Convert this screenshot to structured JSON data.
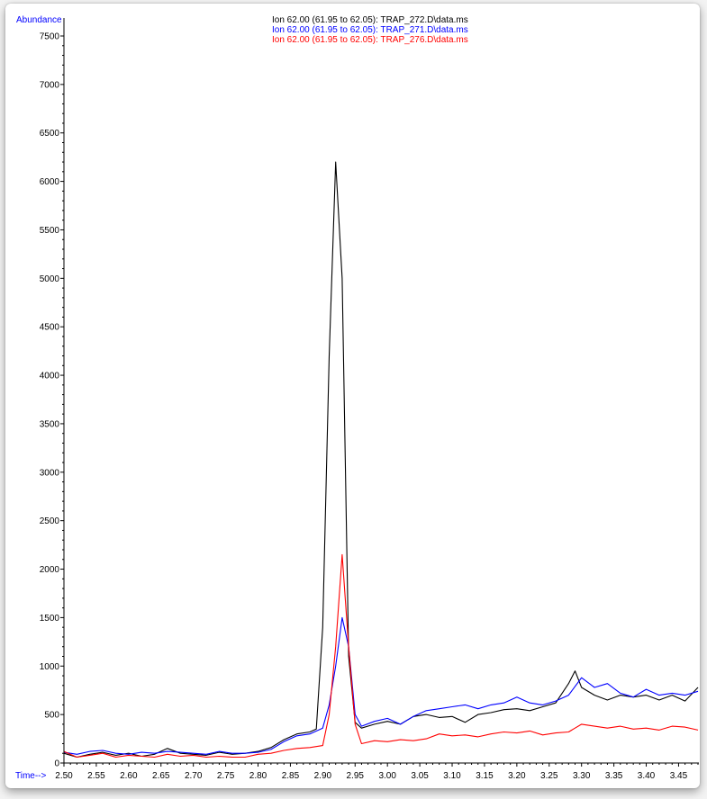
{
  "chart_data": {
    "type": "line",
    "ylabel": "Abundance",
    "xlabel": "Time-->",
    "xlim": [
      2.5,
      3.48
    ],
    "ylim": [
      0,
      7600
    ],
    "x_ticks": [
      "2.50",
      "2.55",
      "2.60",
      "2.65",
      "2.70",
      "2.75",
      "2.80",
      "2.85",
      "2.90",
      "2.95",
      "3.00",
      "3.05",
      "3.10",
      "3.15",
      "3.20",
      "3.25",
      "3.30",
      "3.35",
      "3.40",
      "3.45"
    ],
    "y_ticks": [
      "0",
      "500",
      "1000",
      "1500",
      "2000",
      "2500",
      "3000",
      "3500",
      "4000",
      "4500",
      "5000",
      "5500",
      "6000",
      "6500",
      "7000",
      "7500"
    ],
    "grid": false,
    "legend_position": "top-center",
    "series": [
      {
        "name": "Ion  62.00 (61.95 to 62.05): TRAP_272.D\\data.ms",
        "color": "#000000",
        "x": [
          2.5,
          2.52,
          2.54,
          2.56,
          2.58,
          2.6,
          2.62,
          2.64,
          2.66,
          2.68,
          2.7,
          2.72,
          2.74,
          2.76,
          2.78,
          2.8,
          2.82,
          2.84,
          2.86,
          2.88,
          2.89,
          2.9,
          2.91,
          2.92,
          2.93,
          2.94,
          2.95,
          2.96,
          2.98,
          3.0,
          3.02,
          3.04,
          3.06,
          3.08,
          3.1,
          3.12,
          3.14,
          3.16,
          3.18,
          3.2,
          3.22,
          3.24,
          3.26,
          3.28,
          3.29,
          3.3,
          3.32,
          3.34,
          3.36,
          3.38,
          3.4,
          3.42,
          3.44,
          3.46,
          3.48
        ],
        "y": [
          100,
          60,
          90,
          110,
          80,
          100,
          70,
          90,
          150,
          100,
          90,
          80,
          110,
          90,
          100,
          120,
          160,
          240,
          300,
          320,
          350,
          1400,
          4200,
          6200,
          5000,
          1100,
          420,
          360,
          400,
          430,
          400,
          480,
          500,
          470,
          480,
          420,
          500,
          520,
          550,
          560,
          540,
          580,
          620,
          820,
          950,
          780,
          700,
          650,
          700,
          680,
          700,
          650,
          700,
          640,
          780
        ]
      },
      {
        "name": "Ion  62.00 (61.95 to 62.05): TRAP_271.D\\data.ms",
        "color": "#0000ff",
        "x": [
          2.5,
          2.52,
          2.54,
          2.56,
          2.58,
          2.6,
          2.62,
          2.64,
          2.66,
          2.68,
          2.7,
          2.72,
          2.74,
          2.76,
          2.78,
          2.8,
          2.82,
          2.84,
          2.86,
          2.88,
          2.9,
          2.91,
          2.92,
          2.93,
          2.94,
          2.95,
          2.96,
          2.98,
          3.0,
          3.02,
          3.04,
          3.06,
          3.08,
          3.1,
          3.12,
          3.14,
          3.16,
          3.18,
          3.2,
          3.22,
          3.24,
          3.26,
          3.28,
          3.3,
          3.32,
          3.34,
          3.36,
          3.38,
          3.4,
          3.42,
          3.44,
          3.46,
          3.48
        ],
        "y": [
          110,
          90,
          120,
          130,
          100,
          90,
          110,
          100,
          120,
          110,
          100,
          90,
          120,
          100,
          100,
          110,
          140,
          220,
          280,
          300,
          360,
          600,
          1000,
          1500,
          1200,
          500,
          380,
          430,
          460,
          400,
          480,
          540,
          560,
          580,
          600,
          560,
          600,
          620,
          680,
          620,
          600,
          640,
          700,
          880,
          780,
          820,
          720,
          680,
          760,
          700,
          720,
          700,
          740
        ]
      },
      {
        "name": "Ion  62.00 (61.95 to 62.05): TRAP_276.D\\data.ms",
        "color": "#ff0000",
        "x": [
          2.5,
          2.52,
          2.54,
          2.56,
          2.58,
          2.6,
          2.62,
          2.64,
          2.66,
          2.68,
          2.7,
          2.72,
          2.74,
          2.76,
          2.78,
          2.8,
          2.82,
          2.84,
          2.86,
          2.88,
          2.9,
          2.91,
          2.92,
          2.93,
          2.94,
          2.95,
          2.96,
          2.98,
          3.0,
          3.02,
          3.04,
          3.06,
          3.08,
          3.1,
          3.12,
          3.14,
          3.16,
          3.18,
          3.2,
          3.22,
          3.24,
          3.26,
          3.28,
          3.29,
          3.3,
          3.32,
          3.34,
          3.36,
          3.38,
          3.4,
          3.42,
          3.44,
          3.46,
          3.48
        ],
        "y": [
          120,
          60,
          80,
          100,
          60,
          80,
          70,
          60,
          90,
          70,
          80,
          60,
          70,
          60,
          60,
          90,
          100,
          130,
          150,
          160,
          180,
          500,
          1200,
          2150,
          1200,
          400,
          200,
          230,
          220,
          240,
          230,
          250,
          300,
          280,
          290,
          270,
          300,
          320,
          310,
          330,
          290,
          310,
          320,
          360,
          400,
          380,
          360,
          380,
          350,
          360,
          340,
          380,
          370,
          340
        ]
      }
    ]
  }
}
